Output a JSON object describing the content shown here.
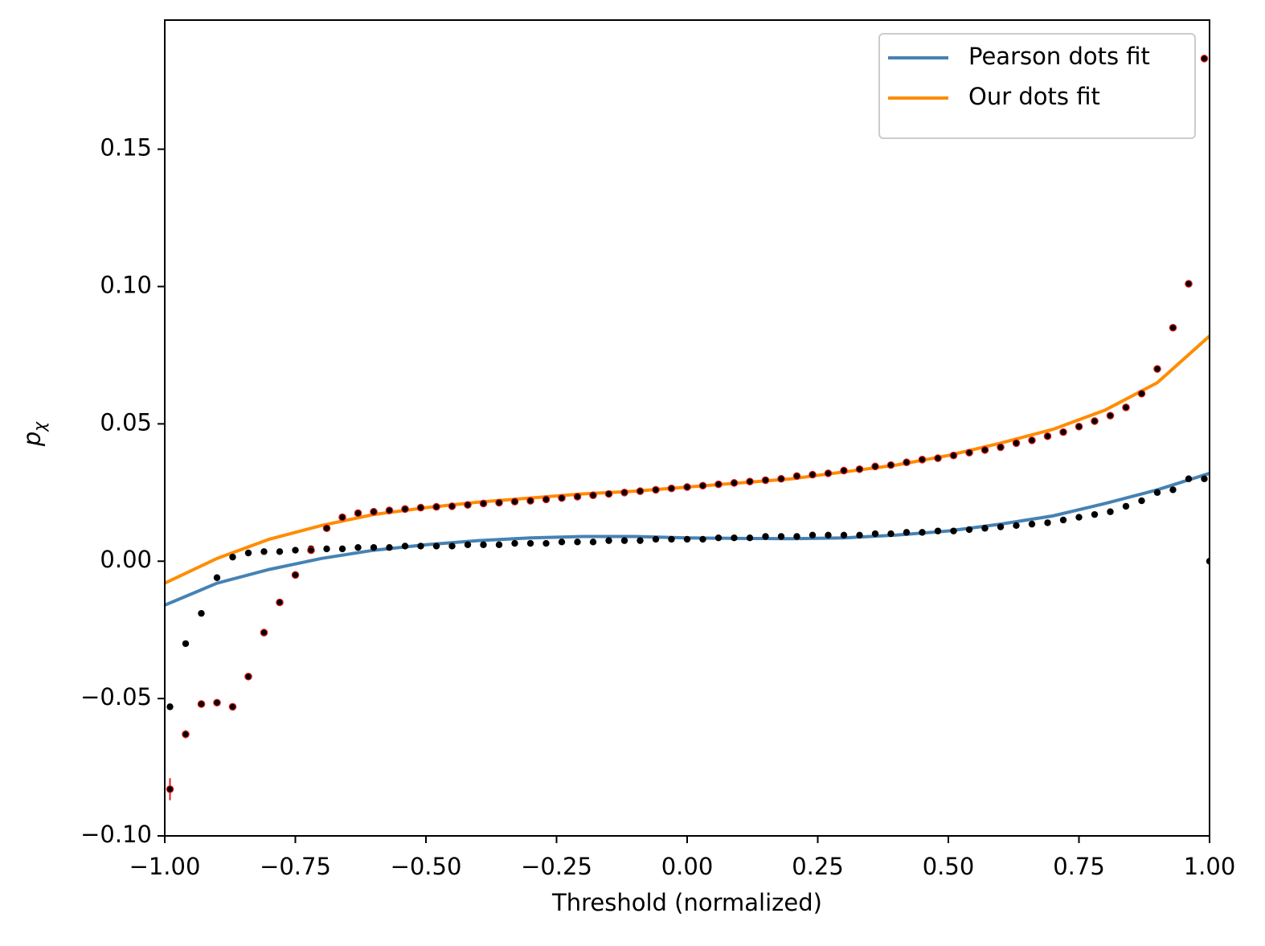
{
  "chart_data": {
    "type": "scatter",
    "xlabel": "Threshold (normalized)",
    "ylabel": {
      "base": "p",
      "subscript": "χ"
    },
    "xlim": [
      -1.0,
      1.0
    ],
    "ylim": [
      -0.1,
      0.197
    ],
    "xticks": [
      {
        "value": -1.0,
        "label": "−1.00"
      },
      {
        "value": -0.75,
        "label": "−0.75"
      },
      {
        "value": -0.5,
        "label": "−0.50"
      },
      {
        "value": -0.25,
        "label": "−0.25"
      },
      {
        "value": 0,
        "label": "0.00"
      },
      {
        "value": 0.25,
        "label": "0.25"
      },
      {
        "value": 0.5,
        "label": "0.50"
      },
      {
        "value": 0.75,
        "label": "0.75"
      },
      {
        "value": 1.0,
        "label": "1.00"
      }
    ],
    "yticks": [
      {
        "value": -0.1,
        "label": "−0.10"
      },
      {
        "value": -0.05,
        "label": "−0.05"
      },
      {
        "value": 0,
        "label": "0.00"
      },
      {
        "value": 0.05,
        "label": "0.05"
      },
      {
        "value": 0.1,
        "label": "0.10"
      },
      {
        "value": 0.15,
        "label": "0.15"
      }
    ],
    "legend": "upper right",
    "series": [
      {
        "kind": "dots",
        "color": "#000000",
        "x": [
          -0.99,
          -0.96,
          -0.93,
          -0.9,
          -0.87,
          -0.84,
          -0.81,
          -0.78,
          -0.75,
          -0.72,
          -0.69,
          -0.66,
          -0.63,
          -0.6,
          -0.57,
          -0.54,
          -0.51,
          -0.48,
          -0.45,
          -0.42,
          -0.39,
          -0.36,
          -0.33,
          -0.3,
          -0.27,
          -0.24,
          -0.21,
          -0.18,
          -0.15,
          -0.12,
          -0.09,
          -0.06,
          -0.03,
          0,
          0.03,
          0.06,
          0.09,
          0.12,
          0.15,
          0.18,
          0.21,
          0.24,
          0.27,
          0.3,
          0.33,
          0.36,
          0.39,
          0.42,
          0.45,
          0.48,
          0.51,
          0.54,
          0.57,
          0.6,
          0.63,
          0.66,
          0.69,
          0.72,
          0.75,
          0.78,
          0.81,
          0.84,
          0.87,
          0.9,
          0.93,
          0.96,
          0.99,
          1.0
        ],
        "values": [
          -0.053,
          -0.03,
          -0.019,
          -0.006,
          0.0015,
          0.003,
          0.0035,
          0.0035,
          0.004,
          0.0045,
          0.0045,
          0.0045,
          0.005,
          0.005,
          0.005,
          0.0055,
          0.0055,
          0.0055,
          0.0055,
          0.006,
          0.006,
          0.006,
          0.0065,
          0.0065,
          0.0065,
          0.007,
          0.007,
          0.007,
          0.0075,
          0.0075,
          0.0075,
          0.008,
          0.008,
          0.008,
          0.008,
          0.0085,
          0.0085,
          0.0085,
          0.009,
          0.009,
          0.009,
          0.0095,
          0.0095,
          0.0095,
          0.0095,
          0.01,
          0.01,
          0.0105,
          0.0105,
          0.011,
          0.011,
          0.0115,
          0.012,
          0.0125,
          0.013,
          0.0135,
          0.014,
          0.015,
          0.016,
          0.017,
          0.018,
          0.02,
          0.022,
          0.025,
          0.026,
          0.03,
          0.03,
          0.0
        ]
      },
      {
        "kind": "dots",
        "color": "#000000",
        "error_color": "#e31a1c",
        "x": [
          -0.99,
          -0.96,
          -0.93,
          -0.9,
          -0.87,
          -0.84,
          -0.81,
          -0.78,
          -0.75,
          -0.72,
          -0.69,
          -0.66,
          -0.63,
          -0.6,
          -0.57,
          -0.54,
          -0.51,
          -0.48,
          -0.45,
          -0.42,
          -0.39,
          -0.36,
          -0.33,
          -0.3,
          -0.27,
          -0.24,
          -0.21,
          -0.18,
          -0.15,
          -0.12,
          -0.09,
          -0.06,
          -0.03,
          0,
          0.03,
          0.06,
          0.09,
          0.12,
          0.15,
          0.18,
          0.21,
          0.24,
          0.27,
          0.3,
          0.33,
          0.36,
          0.39,
          0.42,
          0.45,
          0.48,
          0.51,
          0.54,
          0.57,
          0.6,
          0.63,
          0.66,
          0.69,
          0.72,
          0.75,
          0.78,
          0.81,
          0.84,
          0.87,
          0.9,
          0.93,
          0.96,
          0.99
        ],
        "values": [
          -0.083,
          -0.063,
          -0.052,
          -0.0515,
          -0.053,
          -0.042,
          -0.026,
          -0.015,
          -0.005,
          0.004,
          0.012,
          0.016,
          0.0175,
          0.018,
          0.0185,
          0.019,
          0.0195,
          0.0198,
          0.02,
          0.0205,
          0.021,
          0.0213,
          0.0217,
          0.022,
          0.0225,
          0.023,
          0.0235,
          0.024,
          0.0245,
          0.025,
          0.0255,
          0.026,
          0.0265,
          0.027,
          0.0275,
          0.028,
          0.0285,
          0.029,
          0.0295,
          0.03,
          0.031,
          0.0315,
          0.032,
          0.033,
          0.0335,
          0.0345,
          0.035,
          0.036,
          0.037,
          0.0375,
          0.0385,
          0.0395,
          0.0405,
          0.0415,
          0.043,
          0.044,
          0.0455,
          0.047,
          0.049,
          0.051,
          0.053,
          0.056,
          0.061,
          0.07,
          0.085,
          0.101,
          0.183
        ],
        "errors": [
          0.004,
          0.0015,
          0.0008,
          0.0008,
          0.0008,
          0.0008,
          0.0008,
          0.0008,
          0.0008,
          0.0008,
          0.0008,
          0.0008,
          0.0008,
          0.0008,
          0.0008,
          0.0008,
          0.0008,
          0.0008,
          0.0008,
          0.0008,
          0.0008,
          0.0008,
          0.0008,
          0.0008,
          0.0008,
          0.0008,
          0.0008,
          0.0008,
          0.0008,
          0.0008,
          0.0008,
          0.0008,
          0.0008,
          0.0008,
          0.0008,
          0.0008,
          0.0008,
          0.0008,
          0.0008,
          0.0008,
          0.0008,
          0.0008,
          0.0008,
          0.0008,
          0.0008,
          0.0008,
          0.0008,
          0.0008,
          0.0008,
          0.0008,
          0.0008,
          0.0008,
          0.0008,
          0.0008,
          0.0008,
          0.0008,
          0.0008,
          0.0008,
          0.0008,
          0.0008,
          0.0008,
          0.0008,
          0.0008,
          0.0008,
          0.0008,
          0.0008,
          0.0008
        ]
      },
      {
        "kind": "line",
        "name": "Pearson dots fit",
        "color": "#4682b4",
        "x": [
          -1.0,
          -0.9,
          -0.8,
          -0.7,
          -0.6,
          -0.5,
          -0.4,
          -0.3,
          -0.2,
          -0.1,
          0,
          0.1,
          0.2,
          0.3,
          0.4,
          0.5,
          0.6,
          0.7,
          0.8,
          0.9,
          1.0
        ],
        "values": [
          -0.016,
          -0.008,
          -0.003,
          0.001,
          0.004,
          0.006,
          0.0075,
          0.0085,
          0.009,
          0.009,
          0.0085,
          0.0083,
          0.0082,
          0.0085,
          0.0095,
          0.011,
          0.0135,
          0.0165,
          0.021,
          0.026,
          0.032
        ]
      },
      {
        "kind": "line",
        "name": "Our dots fit",
        "color": "#ff8c00",
        "x": [
          -1.0,
          -0.9,
          -0.8,
          -0.7,
          -0.6,
          -0.5,
          -0.4,
          -0.3,
          -0.2,
          -0.1,
          0,
          0.1,
          0.2,
          0.3,
          0.4,
          0.5,
          0.6,
          0.7,
          0.8,
          0.9,
          1.0
        ],
        "values": [
          -0.008,
          0.001,
          0.008,
          0.013,
          0.017,
          0.0195,
          0.0215,
          0.023,
          0.0245,
          0.0255,
          0.027,
          0.0285,
          0.03,
          0.0325,
          0.035,
          0.0385,
          0.043,
          0.048,
          0.055,
          0.065,
          0.082
        ]
      }
    ]
  }
}
